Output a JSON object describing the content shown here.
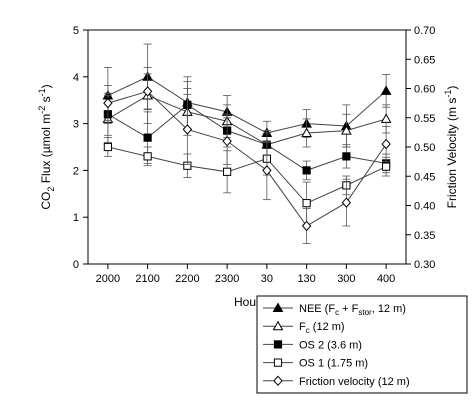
{
  "chart_data": {
    "type": "line",
    "categories": [
      "2000",
      "2100",
      "2200",
      "2300",
      "30",
      "130",
      "300",
      "400"
    ],
    "xlabel": "Hour",
    "ylabel_left": "CO2 Flux (µmol m-2 s-1)",
    "ylabel_right": "Friction Velocity (m s-1)",
    "ylim_left": [
      0,
      5
    ],
    "ylim_right": [
      0.3,
      0.7
    ],
    "y_ticks_left": [
      "0",
      "1",
      "2",
      "3",
      "4",
      "5"
    ],
    "y_ticks_right": [
      "0.30",
      "0.35",
      "0.40",
      "0.45",
      "0.50",
      "0.55",
      "0.60",
      "0.65",
      "0.70"
    ],
    "grid": false,
    "legend_position": "bottom-right, outside plot",
    "series": [
      {
        "name": "NEE (Fc + Fstor, 12 m)",
        "axis": "left",
        "marker": "filled-triangle",
        "values": [
          3.6,
          4.0,
          3.45,
          3.25,
          2.8,
          3.0,
          2.95,
          3.7
        ],
        "err": [
          0.6,
          0.7,
          0.55,
          0.35,
          0.25,
          0.3,
          0.45,
          0.35
        ]
      },
      {
        "name": "Fc (12 m)",
        "axis": "left",
        "marker": "open-triangle",
        "values": [
          3.1,
          3.6,
          3.25,
          3.05,
          2.55,
          2.8,
          2.85,
          3.1
        ],
        "err": [
          0.5,
          0.6,
          0.5,
          0.35,
          0.25,
          0.3,
          0.35,
          0.3
        ]
      },
      {
        "name": "OS 2 (3.6 m)",
        "axis": "left",
        "marker": "filled-square",
        "values": [
          3.2,
          2.7,
          3.4,
          2.85,
          2.55,
          2.0,
          2.3,
          2.15
        ],
        "err": [
          0.45,
          0.55,
          0.5,
          0.35,
          0.3,
          0.2,
          0.25,
          0.2
        ]
      },
      {
        "name": "OS 1 (1.75 m)",
        "axis": "left",
        "marker": "open-square",
        "values": [
          2.5,
          2.3,
          2.1,
          1.97,
          2.25,
          1.3,
          1.68,
          2.08
        ],
        "err": [
          0.2,
          0.2,
          0.25,
          0.45,
          0.35,
          0.45,
          0.2,
          0.2
        ]
      },
      {
        "name": "Friction velocity (12 m)",
        "axis": "right",
        "marker": "open-diamond",
        "values": [
          0.575,
          0.595,
          0.53,
          0.51,
          0.46,
          0.365,
          0.405,
          0.505
        ],
        "err": [
          0.03,
          0.03,
          0.06,
          0.04,
          0.05,
          0.03,
          0.04,
          0.03
        ]
      }
    ]
  }
}
